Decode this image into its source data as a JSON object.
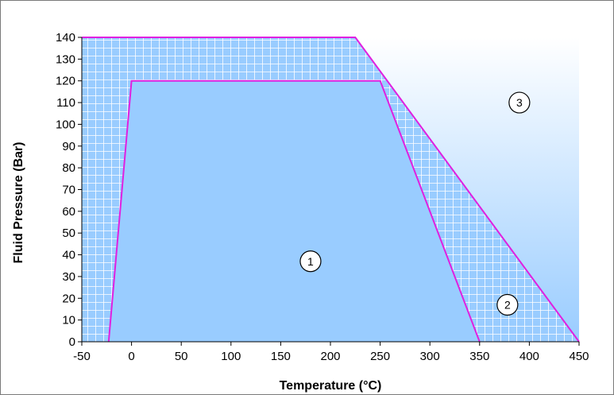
{
  "chart_data": {
    "type": "area",
    "xlabel": "Temperature (°C)",
    "ylabel": "Fluid Pressure (Bar)",
    "xlim": [
      -50,
      450
    ],
    "ylim": [
      0,
      140
    ],
    "x_ticks": [
      "-50",
      "0",
      "50",
      "100",
      "150",
      "200",
      "250",
      "300",
      "350",
      "400",
      "450"
    ],
    "y_ticks": [
      "0",
      "10",
      "20",
      "30",
      "40",
      "50",
      "60",
      "70",
      "80",
      "90",
      "100",
      "110",
      "120",
      "130",
      "140"
    ],
    "grid": false,
    "zones": [
      {
        "label": "1",
        "points": [
          [
            -23,
            0
          ],
          [
            0,
            120
          ],
          [
            250,
            120
          ],
          [
            350,
            0
          ]
        ],
        "label_at": [
          180,
          37
        ]
      },
      {
        "label": "2",
        "points": [
          [
            -50,
            0
          ],
          [
            -50,
            140
          ],
          [
            225,
            140
          ],
          [
            450,
            0
          ]
        ],
        "label_at": [
          378,
          17
        ]
      },
      {
        "label": "3",
        "points": [
          [
            225,
            140
          ],
          [
            450,
            140
          ],
          [
            450,
            0
          ]
        ],
        "label_at": [
          390,
          110
        ]
      }
    ],
    "colors": {
      "zone1_fill": "#99ccff",
      "zone2_fill": "#99ccff",
      "zone2_hatch": "#ffffff",
      "zone3_gradient_top": "#ffffff",
      "zone3_gradient_bottom": "#99ccff",
      "boundary": "#e020e0",
      "axis": "#000000"
    }
  }
}
